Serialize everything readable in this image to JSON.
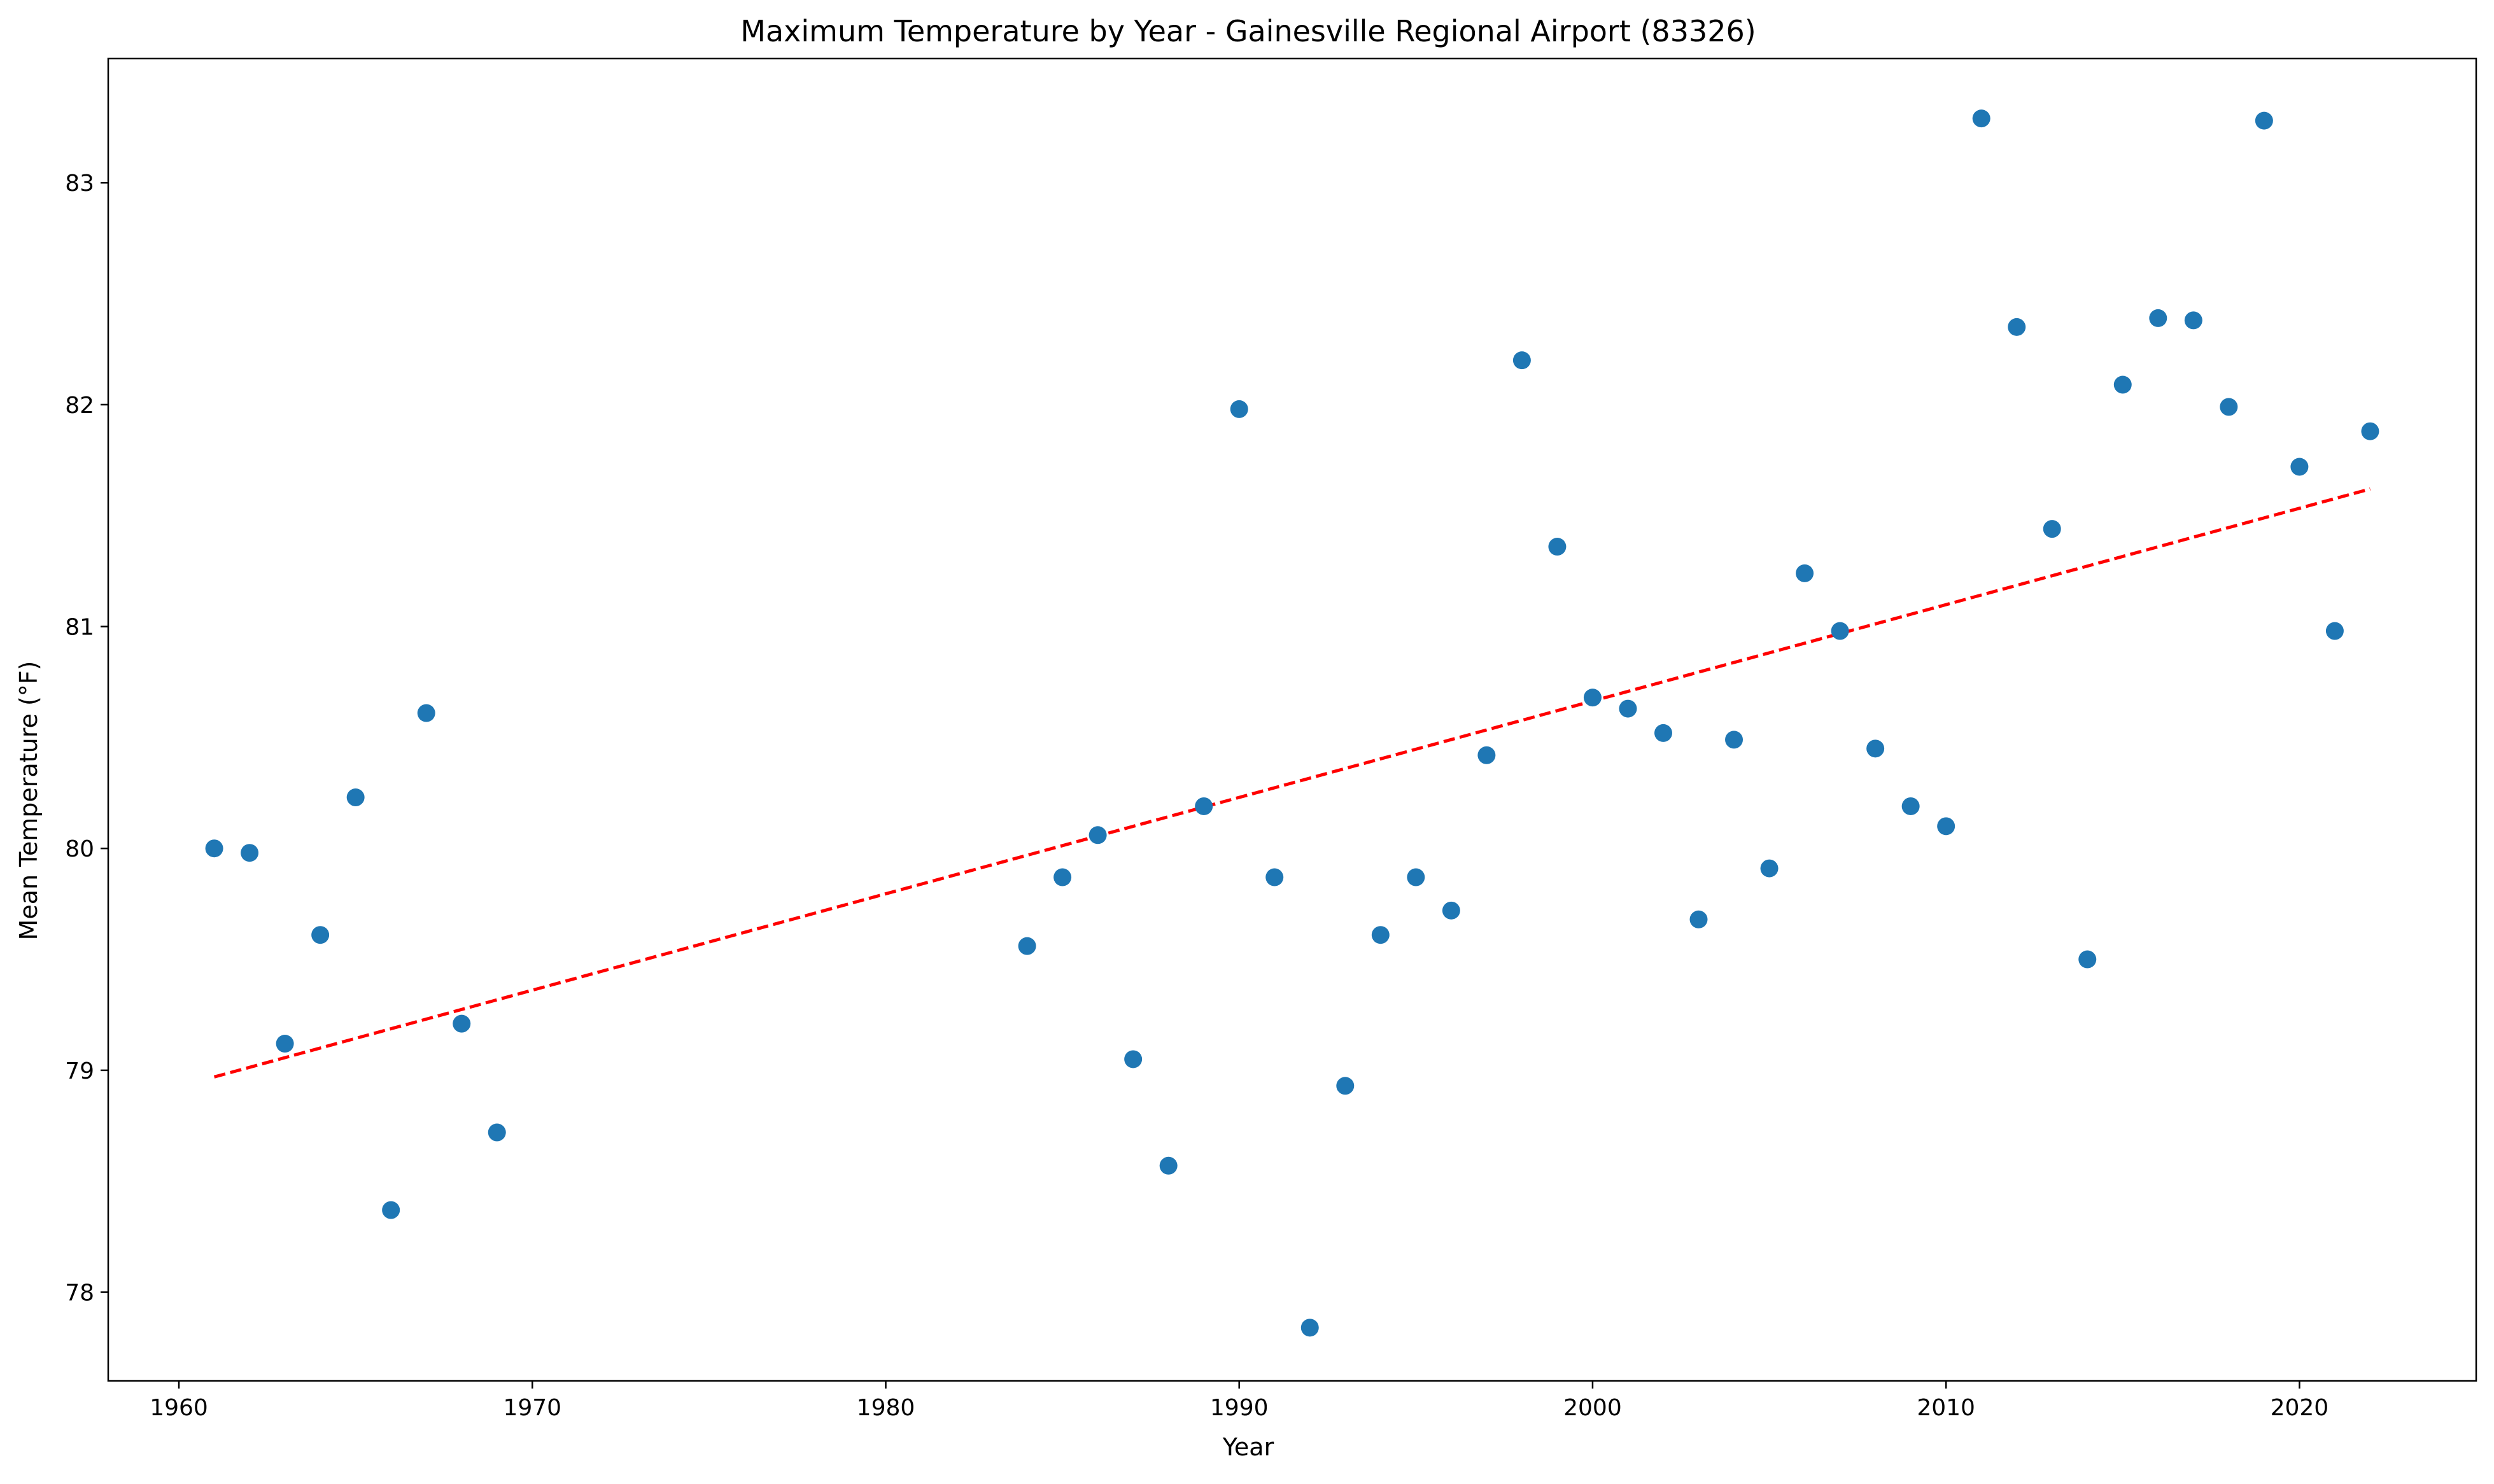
{
  "chart_data": {
    "type": "scatter",
    "title": "Maximum Temperature by Year - Gainesville Regional Airport (83326)",
    "xlabel": "Year",
    "ylabel": "Mean Temperature (°F)",
    "xlim": [
      1958,
      2025
    ],
    "ylim": [
      77.6,
      83.56
    ],
    "xticks": [
      1960,
      1970,
      1980,
      1990,
      2000,
      2010,
      2020
    ],
    "yticks": [
      78,
      79,
      80,
      81,
      82,
      83
    ],
    "grid": false,
    "legend": "none",
    "colors": {
      "points": "#1f77b4",
      "trend": "#ff0000"
    },
    "series": [
      {
        "x": [
          1961,
          1962,
          1963,
          1964,
          1965,
          1966,
          1967,
          1968,
          1969,
          1984,
          1985,
          1986,
          1987,
          1988,
          1989,
          1990,
          1991,
          1992,
          1993,
          1994,
          1995,
          1996,
          1997,
          1998,
          1999,
          2000,
          2001,
          2002,
          2003,
          2004,
          2005,
          2006,
          2007,
          2008,
          2009,
          2010,
          2011,
          2012,
          2013,
          2014,
          2015,
          2016,
          2017,
          2018,
          2019,
          2020,
          2021,
          2022
        ],
        "y": [
          80.0,
          79.98,
          79.12,
          79.61,
          80.23,
          78.37,
          80.61,
          79.21,
          78.72,
          79.56,
          79.87,
          80.06,
          79.05,
          78.57,
          80.19,
          81.98,
          79.87,
          77.84,
          78.93,
          79.61,
          79.87,
          79.72,
          80.42,
          82.2,
          81.36,
          80.68,
          80.63,
          80.52,
          79.68,
          80.49,
          79.91,
          81.24,
          80.98,
          80.45,
          80.19,
          80.1,
          83.29,
          82.35,
          81.44,
          79.5,
          82.09,
          82.39,
          82.38,
          81.99,
          83.28,
          81.72,
          80.98,
          81.88
        ]
      }
    ],
    "trendline": {
      "style": "dashed",
      "x": [
        1961,
        2022
      ],
      "y": [
        78.97,
        81.62
      ]
    }
  }
}
